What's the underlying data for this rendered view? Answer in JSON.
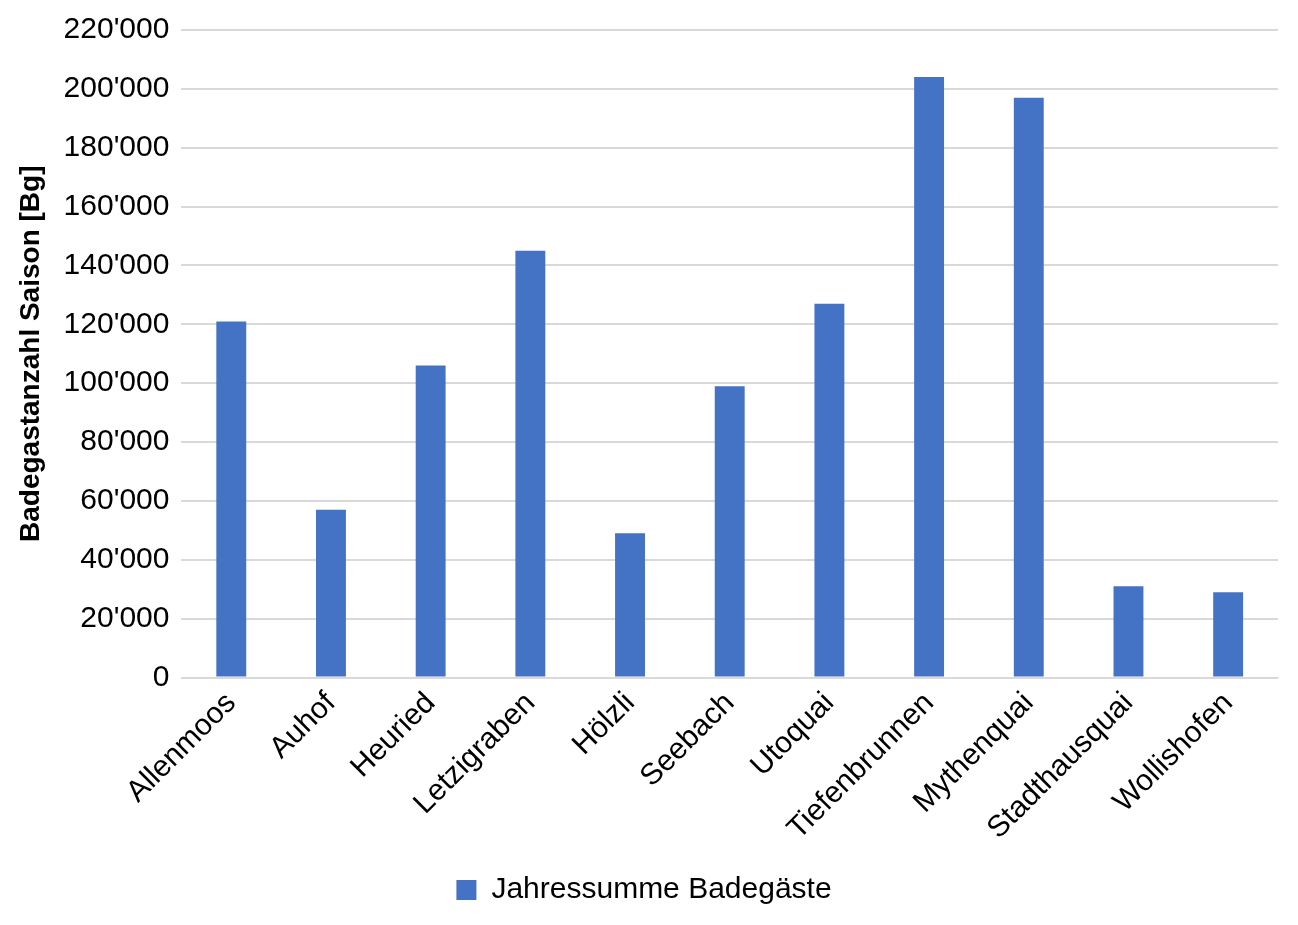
{
  "chart_data": {
    "type": "bar",
    "ylabel": "Badegastanzahl Saison [Bg]",
    "categories": [
      "Allenmoos",
      "Auhof",
      "Heuried",
      "Letzigraben",
      "Hölzli",
      "Seebach",
      "Utoquai",
      "Tiefenbrunnen",
      "Mythenquai",
      "Stadthausquai",
      "Wollishofen"
    ],
    "series": [
      {
        "name": "Jahressumme Badegäste",
        "color": "#4472c4",
        "values": [
          121000,
          57000,
          106000,
          145000,
          49000,
          99000,
          127000,
          204000,
          197000,
          31000,
          29000
        ]
      }
    ],
    "ylim": [
      0,
      220000
    ],
    "yticks": [
      {
        "value": 0,
        "label": "0"
      },
      {
        "value": 20000,
        "label": "20'000"
      },
      {
        "value": 40000,
        "label": "40'000"
      },
      {
        "value": 60000,
        "label": "60'000"
      },
      {
        "value": 80000,
        "label": "80'000"
      },
      {
        "value": 100000,
        "label": "100'000"
      },
      {
        "value": 120000,
        "label": "120'000"
      },
      {
        "value": 140000,
        "label": "140'000"
      },
      {
        "value": 160000,
        "label": "160'000"
      },
      {
        "value": 180000,
        "label": "180'000"
      },
      {
        "value": 200000,
        "label": "200'000"
      },
      {
        "value": 220000,
        "label": "220'000"
      }
    ],
    "grid": "y",
    "legend": "bottom"
  }
}
